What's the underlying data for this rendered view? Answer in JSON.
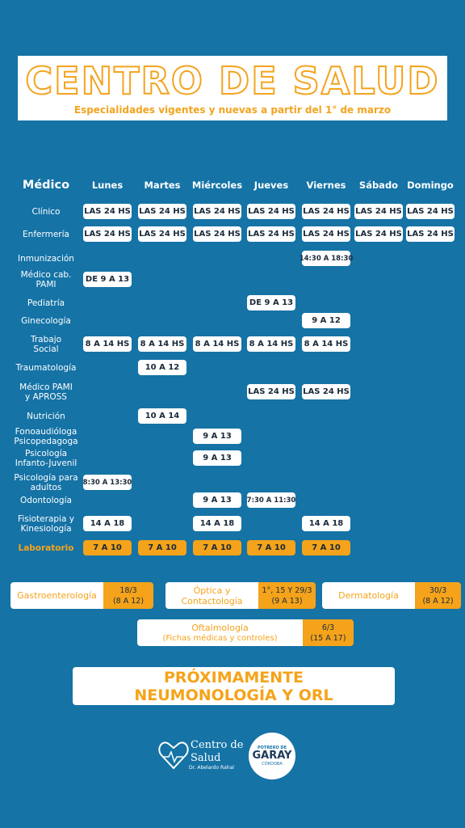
{
  "header": {
    "title": "CENTRO DE SALUD",
    "subtitle": "Especialidades vigentes y nuevas a partir del 1° de marzo"
  },
  "table": {
    "columns": [
      "Médico",
      "Lunes",
      "Martes",
      "Miércoles",
      "Jueves",
      "Viernes",
      "Sábado",
      "Domingo"
    ],
    "rows": [
      [
        "Clínico",
        "LAS 24 HS",
        "LAS 24 HS",
        "LAS 24 HS",
        "LAS 24 HS",
        "LAS 24 HS",
        "LAS 24 HS",
        "LAS 24 HS"
      ],
      [
        "Enfermería",
        "LAS 24 HS",
        "LAS 24 HS",
        "LAS 24 HS",
        "LAS 24 HS",
        "LAS 24 HS",
        "LAS 24 HS",
        "LAS 24 HS"
      ],
      [
        "Inmunización",
        null,
        null,
        null,
        null,
        "14:30 A 18:30",
        null,
        null
      ],
      [
        "Médico cab.\nPAMI",
        "DE 9 A 13",
        null,
        null,
        null,
        null,
        null,
        null
      ],
      [
        "Pediatría",
        null,
        null,
        null,
        "DE 9 A 13",
        null,
        null,
        null
      ],
      [
        "Ginecología",
        null,
        null,
        null,
        null,
        "9 A 12",
        null,
        null
      ],
      [
        "Trabajo\nSocial",
        "8 A 14 HS",
        "8 A 14 HS",
        "8 A 14 HS",
        "8 A 14 HS",
        "8 A 14 HS",
        null,
        null
      ],
      [
        "Traumatología",
        null,
        "10 A 12",
        null,
        null,
        null,
        null,
        null
      ],
      [
        "Médico PAMI\ny APROSS",
        null,
        null,
        null,
        "LAS 24 HS",
        "LAS 24 HS",
        null,
        null
      ],
      [
        "Nutrición",
        null,
        "10 A 14",
        null,
        null,
        null,
        null,
        null
      ],
      [
        "Fonoaudióloga\nPsicopedagoga",
        null,
        null,
        "9 A 13",
        null,
        null,
        null,
        null
      ],
      [
        "Psicología\nInfanto-Juvenil",
        null,
        null,
        "9 A 13",
        null,
        null,
        null,
        null
      ],
      [
        "Psicología para\nadultos",
        "8:30 A 13:30",
        null,
        null,
        null,
        null,
        null,
        null
      ],
      [
        "Odontología",
        null,
        null,
        "9 A 13",
        "7:30 A 11:30",
        null,
        null,
        null
      ],
      [
        "Fisioterapia y\nKinesiología",
        "14 A 18",
        null,
        "14 A 18",
        null,
        "14 A 18",
        null,
        null
      ],
      [
        "Laboratorio",
        "7 A 10",
        "7 A 10",
        "7 A 10",
        "7 A 10",
        "7 A 10",
        null,
        null
      ]
    ]
  },
  "specialties": [
    {
      "name": "Gastroenterología",
      "date": "18/3\n(8 A 12)"
    },
    {
      "name": "Óptica y\nContactología",
      "date": "1°, 15 Y 29/3\n(9 A 13)"
    },
    {
      "name": "Dermatología",
      "date": "30/3\n(8 A 12)"
    },
    {
      "name": "Oftalmología",
      "note": "(Fichas médicas y controles)",
      "date": "6/3\n(15 A 17)"
    }
  ],
  "upcoming": "PRÓXIMAMENTE\nNEUMONOLOGÍA Y ORL",
  "footer": {
    "logo_name": "Centro de\nSalud",
    "logo_doctor": "Dr. Abelardo Rahal",
    "badge_top": "POTRERO DE",
    "badge_main": "GARAY",
    "badge_bottom": "CÓRDOBA"
  }
}
